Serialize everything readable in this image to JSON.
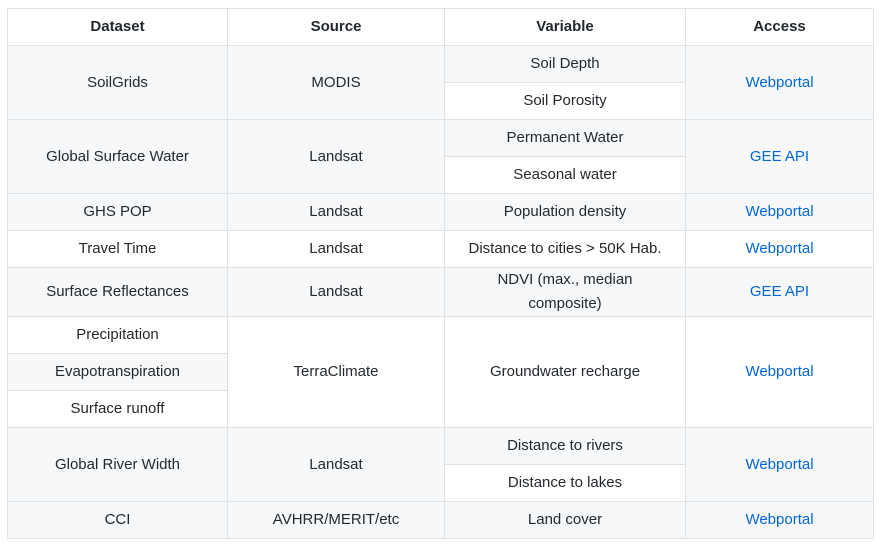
{
  "table": {
    "headers": [
      "Dataset",
      "Source",
      "Variable",
      "Access"
    ],
    "rows": {
      "soilgrids": {
        "dataset": "SoilGrids",
        "source": "MODIS",
        "variables": [
          "Soil Depth",
          "Soil Porosity"
        ],
        "access": "Webportal"
      },
      "gsw": {
        "dataset": "Global Surface Water",
        "source": "Landsat",
        "variables": [
          "Permanent Water",
          "Seasonal water"
        ],
        "access": "GEE API"
      },
      "ghspop": {
        "dataset": "GHS POP",
        "source": "Landsat",
        "variable": "Population density",
        "access": "Webportal"
      },
      "traveltime": {
        "dataset": "Travel Time",
        "source": "Landsat",
        "variable": "Distance to cities > 50K Hab.",
        "access": "Webportal"
      },
      "surfrefl": {
        "dataset": "Surface Reflectances",
        "source": "Landsat",
        "variable_lines": [
          "NDVI (max., median",
          "composite)"
        ],
        "access": "GEE API"
      },
      "terraclimate": {
        "datasets": [
          "Precipitation",
          "Evapotranspiration",
          "Surface runoff"
        ],
        "source": "TerraClimate",
        "variable": "Groundwater recharge",
        "access": "Webportal"
      },
      "riverwidth": {
        "dataset": "Global River Width",
        "source": "Landsat",
        "variables": [
          "Distance to rivers",
          "Distance to lakes"
        ],
        "access": "Webportal"
      },
      "cci": {
        "dataset": "CCI",
        "source": "AVHRR/MERIT/etc",
        "variable": "Land cover",
        "access": "Webportal"
      }
    }
  },
  "colors": {
    "link": "#0366d6",
    "stripe": "#f6f8fa",
    "border": "#dfe2e5",
    "text": "#24292e"
  }
}
